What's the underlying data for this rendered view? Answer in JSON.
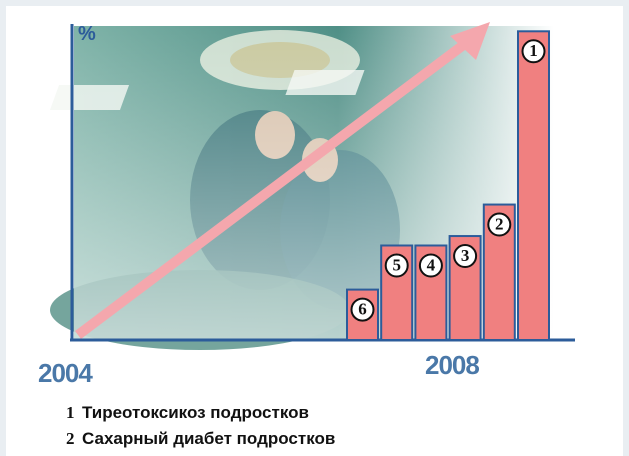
{
  "chart_data": {
    "type": "bar",
    "y_label": "%",
    "x_labels": [
      "2004",
      "2008"
    ],
    "categories": [
      "6",
      "5",
      "4",
      "3",
      "2",
      "1"
    ],
    "values": [
      16,
      30,
      30,
      33,
      43,
      98
    ],
    "color": "#f08080",
    "ylim": [
      0,
      100
    ]
  },
  "legend": [
    {
      "number": "1",
      "text": "Тиреотоксикоз подростков"
    },
    {
      "number": "2",
      "text": "Сахарный диабет подростков"
    }
  ]
}
